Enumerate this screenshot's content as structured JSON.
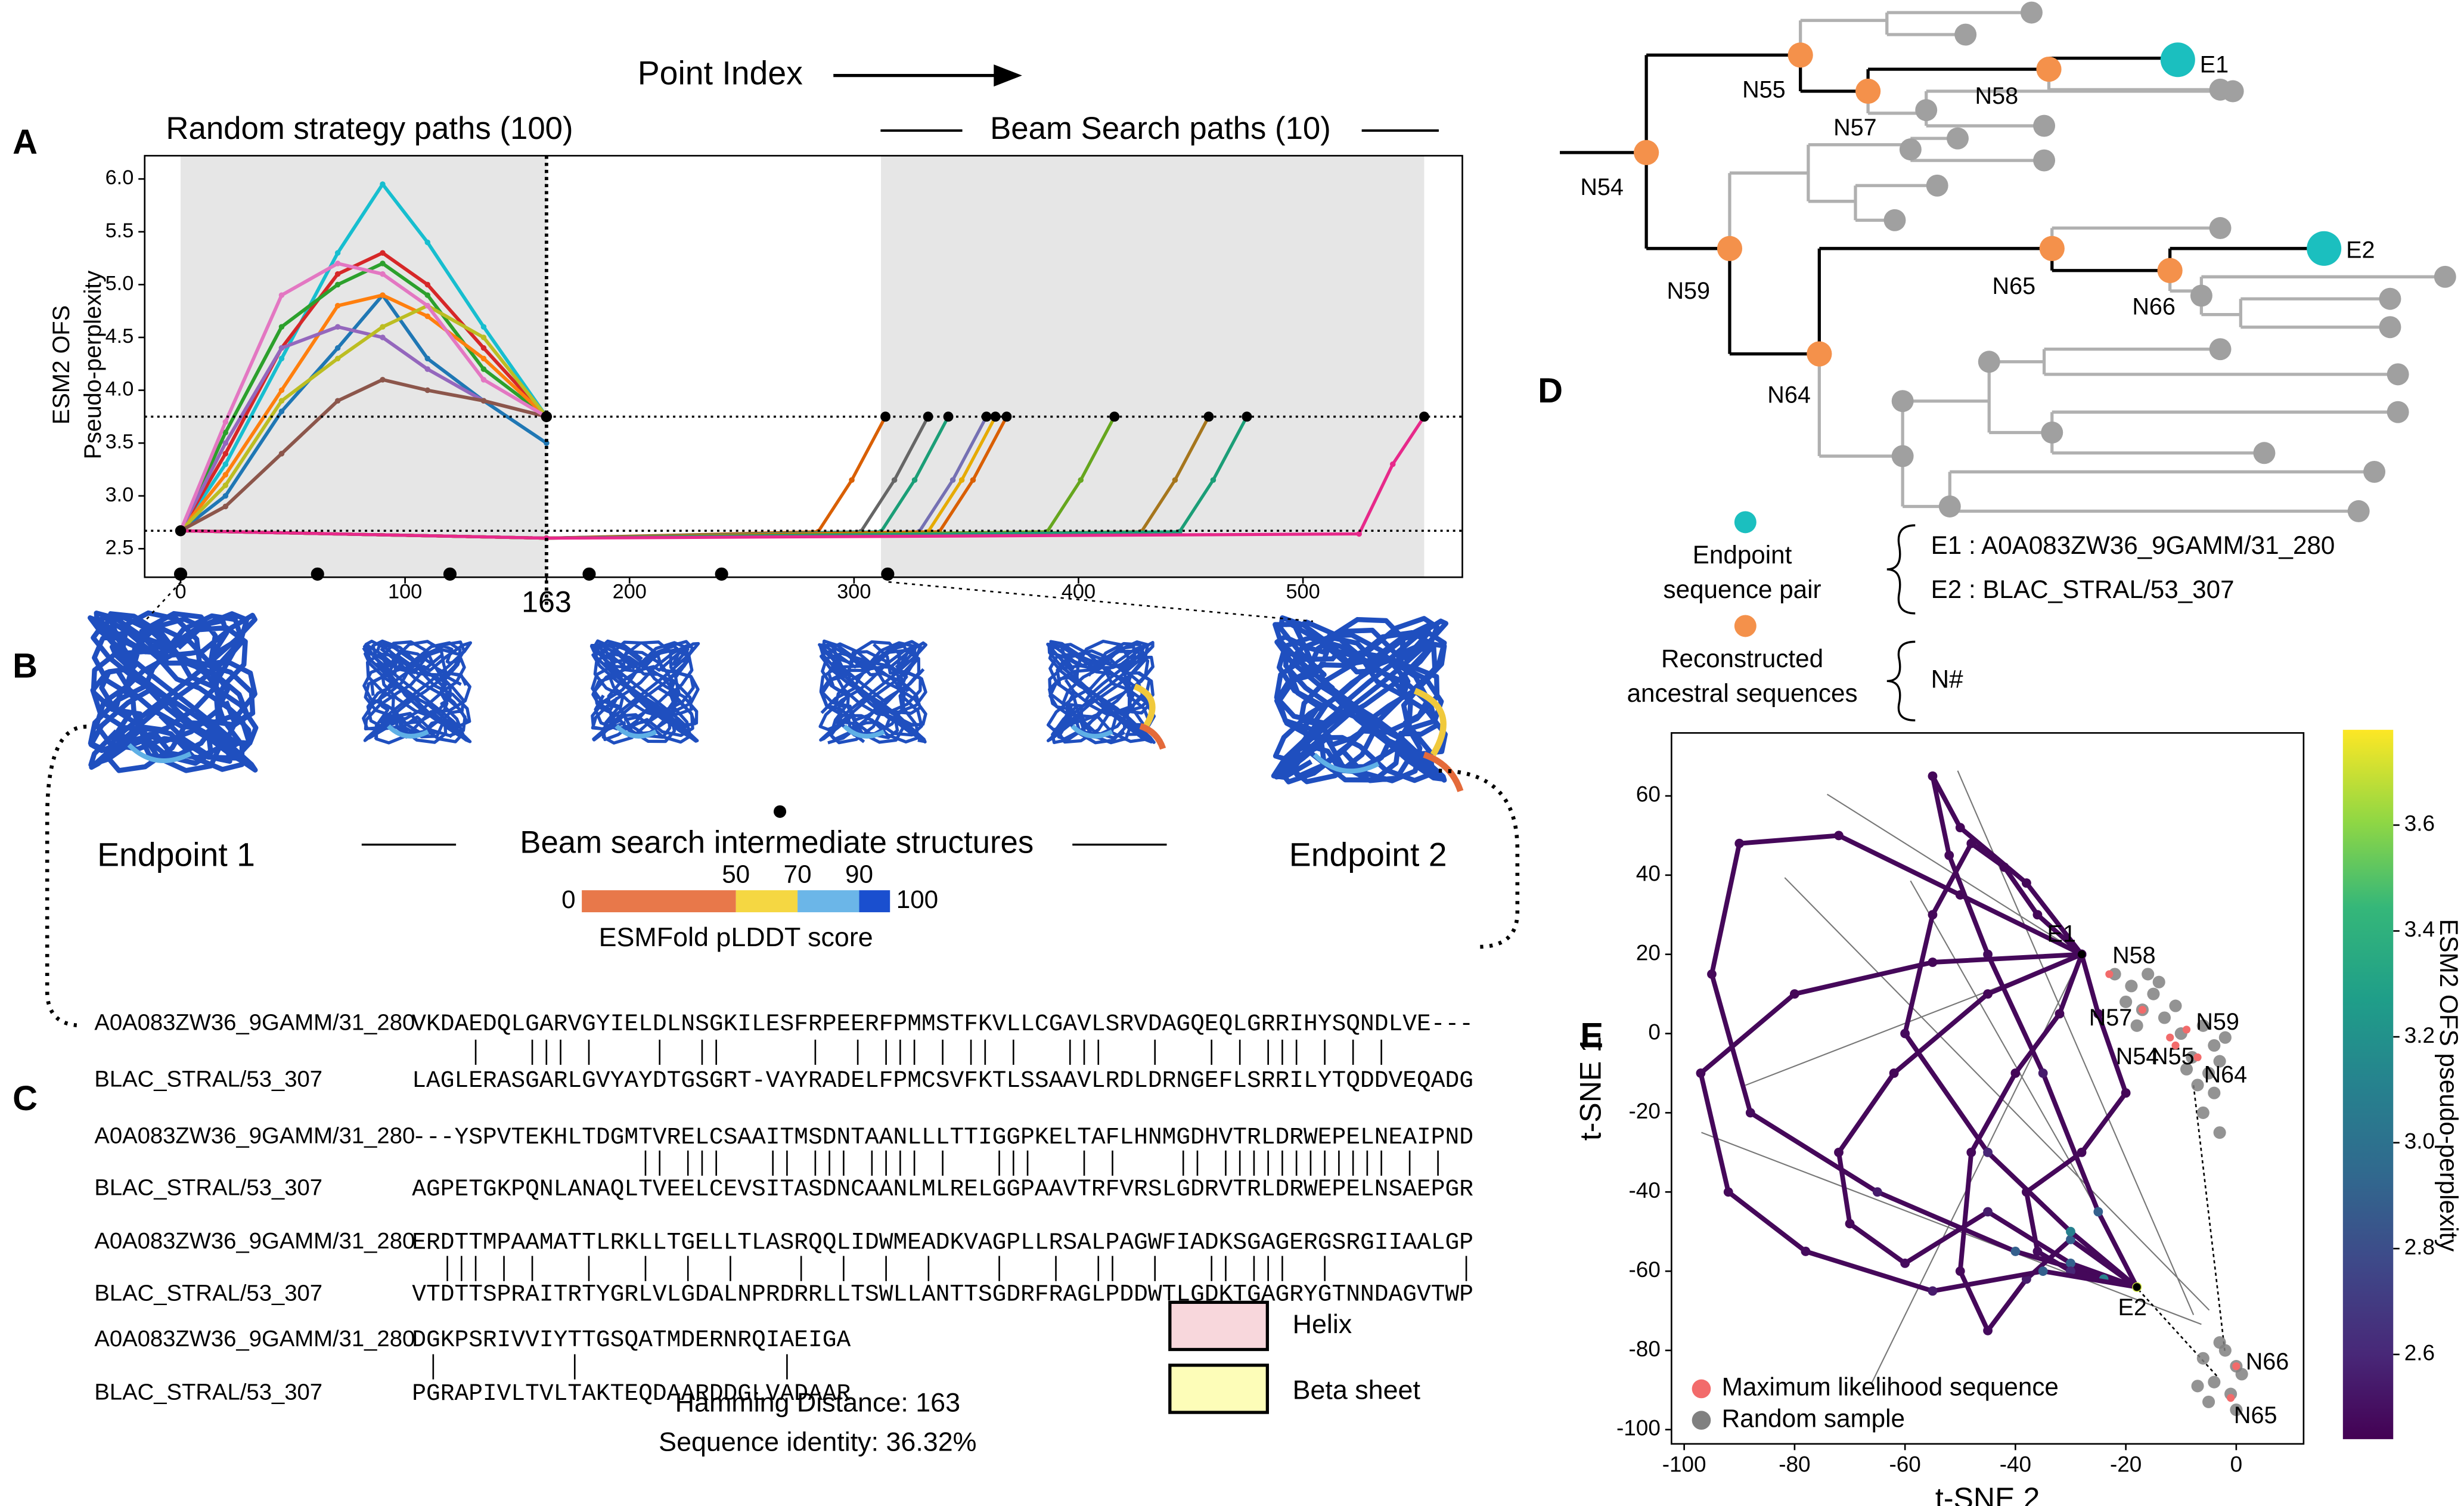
{
  "panel_labels": [
    "A",
    "B",
    "C",
    "D",
    "E"
  ],
  "chart_data": [
    {
      "type": "line",
      "x_title": "Point Index",
      "random_label": "Random strategy paths (100)",
      "beam_label": "Beam Search paths (10)",
      "y_title": [
        "ESM2 OFS",
        "Pseudo-perplexity"
      ],
      "xlim": [
        -16,
        571
      ],
      "ylim": [
        2.23,
        6.22
      ],
      "xticks": [
        0,
        100,
        163,
        200,
        300,
        400,
        500
      ],
      "yticks": [
        2.5,
        {
          "value": 3,
          "label": "3.0"
        },
        3.5,
        {
          "value": 4,
          "label": "4.0"
        },
        4.5,
        {
          "value": 5,
          "label": "5.0"
        },
        5.5,
        {
          "value": 6,
          "label": "6.0"
        }
      ],
      "shaded": [
        [
          0,
          163
        ],
        [
          312,
          554
        ]
      ],
      "hlines": [
        3.75,
        2.67
      ],
      "vline": 163,
      "structure_points": [
        0,
        61,
        120,
        182,
        241,
        315
      ],
      "series": [
        {
          "color": "#17becf",
          "x": [
            0,
            20,
            45,
            70,
            90,
            110,
            135,
            163
          ],
          "values": [
            2.67,
            3.3,
            4.3,
            5.3,
            5.95,
            5.4,
            4.6,
            3.75
          ]
        },
        {
          "color": "#d62728",
          "x": [
            0,
            20,
            45,
            70,
            90,
            110,
            135,
            163
          ],
          "values": [
            2.67,
            3.4,
            4.4,
            5.1,
            5.3,
            5.0,
            4.4,
            3.75
          ]
        },
        {
          "color": "#1f77b4",
          "x": [
            0,
            20,
            45,
            70,
            90,
            110,
            135,
            163
          ],
          "values": [
            2.67,
            3.0,
            3.8,
            4.4,
            4.9,
            4.3,
            3.9,
            3.5
          ]
        },
        {
          "color": "#2ca02c",
          "x": [
            0,
            20,
            45,
            70,
            90,
            110,
            135,
            163
          ],
          "values": [
            2.67,
            3.6,
            4.6,
            5.0,
            5.2,
            4.9,
            4.2,
            3.75
          ]
        },
        {
          "color": "#ff7f0e",
          "x": [
            0,
            20,
            45,
            70,
            90,
            110,
            135,
            163
          ],
          "values": [
            2.67,
            3.2,
            4.0,
            4.8,
            4.9,
            4.7,
            4.3,
            3.75
          ]
        },
        {
          "color": "#9467bd",
          "x": [
            0,
            20,
            45,
            70,
            90,
            110,
            135,
            163
          ],
          "values": [
            2.67,
            3.5,
            4.4,
            4.6,
            4.5,
            4.2,
            3.9,
            3.75
          ]
        },
        {
          "color": "#bcbd22",
          "x": [
            0,
            20,
            45,
            70,
            90,
            110,
            135,
            163
          ],
          "values": [
            2.67,
            3.1,
            3.9,
            4.3,
            4.6,
            4.8,
            4.5,
            3.75
          ]
        },
        {
          "color": "#8c564b",
          "x": [
            0,
            20,
            45,
            70,
            90,
            110,
            135,
            163
          ],
          "values": [
            2.67,
            2.9,
            3.4,
            3.9,
            4.1,
            4.0,
            3.9,
            3.75
          ]
        },
        {
          "color": "#e377c2",
          "x": [
            0,
            20,
            45,
            70,
            90,
            110,
            135,
            163
          ],
          "values": [
            2.67,
            3.7,
            4.9,
            5.2,
            5.1,
            4.8,
            4.1,
            3.75
          ]
        }
      ],
      "beam_series": [
        {
          "color": "#d95f02",
          "x": [
            0,
            163,
            284,
            299,
            314
          ],
          "values": [
            2.67,
            2.6,
            2.66,
            3.15,
            3.75
          ]
        },
        {
          "color": "#666666",
          "x": [
            0,
            163,
            303,
            318,
            333
          ],
          "values": [
            2.67,
            2.6,
            2.66,
            3.15,
            3.75
          ]
        },
        {
          "color": "#1b9e77",
          "x": [
            0,
            163,
            312,
            327,
            342
          ],
          "values": [
            2.67,
            2.6,
            2.66,
            3.15,
            3.75
          ]
        },
        {
          "color": "#7570b3",
          "x": [
            0,
            163,
            329,
            344,
            359
          ],
          "values": [
            2.67,
            2.6,
            2.66,
            3.15,
            3.75
          ]
        },
        {
          "color": "#e6ab02",
          "x": [
            0,
            163,
            333,
            348,
            363
          ],
          "values": [
            2.67,
            2.6,
            2.66,
            3.15,
            3.75
          ]
        },
        {
          "color": "#d95f02",
          "x": [
            0,
            163,
            338,
            353,
            368
          ],
          "values": [
            2.67,
            2.6,
            2.66,
            3.15,
            3.75
          ]
        },
        {
          "color": "#66a61e",
          "x": [
            0,
            163,
            386,
            401,
            416
          ],
          "values": [
            2.67,
            2.6,
            2.66,
            3.15,
            3.75
          ]
        },
        {
          "color": "#a6761d",
          "x": [
            0,
            163,
            428,
            443,
            458
          ],
          "values": [
            2.67,
            2.6,
            2.66,
            3.15,
            3.75
          ]
        },
        {
          "color": "#1b9e77",
          "x": [
            0,
            163,
            445,
            460,
            475
          ],
          "values": [
            2.67,
            2.6,
            2.66,
            3.15,
            3.75
          ]
        },
        {
          "color": "#e7298a",
          "x": [
            0,
            163,
            525,
            540,
            554
          ],
          "values": [
            2.67,
            2.6,
            2.64,
            3.3,
            3.75
          ]
        }
      ]
    },
    {
      "type": "scatter",
      "x_title": "t-SNE 2",
      "y_title": "t-SNE 1",
      "xlim": [
        -102.3,
        12.2
      ],
      "ylim": [
        -103.6,
        75.9
      ],
      "xticks": [
        -100,
        -80,
        -60,
        -40,
        -20,
        0
      ],
      "yticks": [
        60,
        40,
        20,
        0,
        -20,
        -40,
        -60,
        -80,
        -100
      ],
      "colorbar": {
        "label": "ESM2 OFS pseudo-perplexity",
        "lim": [
          2.44,
          3.78
        ],
        "ticks": [
          2.6,
          2.8,
          {
            "value": 3,
            "label": "3.0"
          },
          3.2,
          3.4,
          3.6
        ]
      },
      "trajectories": [
        {
          "x": [
            -28,
            -50,
            -72,
            -90,
            -95,
            -88,
            -65,
            -40,
            -18
          ],
          "y": [
            20,
            35,
            50,
            48,
            15,
            -20,
            -40,
            -55,
            -64
          ],
          "z": [
            2.47,
            2.46,
            2.46,
            2.47,
            2.47,
            2.48,
            2.55,
            2.9,
            3.7
          ]
        },
        {
          "x": [
            -28,
            -45,
            -62,
            -72,
            -70,
            -60,
            -45,
            -30,
            -18
          ],
          "y": [
            20,
            10,
            -10,
            -30,
            -48,
            -58,
            -45,
            -58,
            -64
          ],
          "z": [
            2.47,
            2.46,
            2.46,
            2.47,
            2.47,
            2.48,
            2.55,
            2.9,
            3.7
          ]
        },
        {
          "x": [
            -28,
            -38,
            -50,
            -55,
            -52,
            -45,
            -35,
            -25,
            -18
          ],
          "y": [
            20,
            38,
            52,
            65,
            45,
            20,
            -10,
            -45,
            -64
          ],
          "z": [
            2.47,
            2.46,
            2.46,
            2.47,
            2.47,
            2.48,
            2.55,
            2.9,
            3.7
          ]
        },
        {
          "x": [
            -28,
            -32,
            -40,
            -48,
            -50,
            -45,
            -38,
            -30,
            -18
          ],
          "y": [
            20,
            5,
            -10,
            -30,
            -60,
            -75,
            -62,
            -52,
            -64
          ],
          "z": [
            2.47,
            2.46,
            2.46,
            2.47,
            2.47,
            2.48,
            2.55,
            2.9,
            3.7
          ]
        },
        {
          "x": [
            -28,
            -25,
            -20,
            -28,
            -38,
            -36,
            -30,
            -24,
            -18
          ],
          "y": [
            20,
            5,
            -15,
            -30,
            -40,
            -55,
            -60,
            -62,
            -64
          ],
          "z": [
            2.47,
            2.46,
            2.46,
            2.47,
            2.47,
            2.48,
            2.6,
            3.1,
            3.7
          ]
        },
        {
          "x": [
            -28,
            -55,
            -80,
            -97,
            -92,
            -78,
            -55,
            -35,
            -18
          ],
          "y": [
            20,
            18,
            10,
            -10,
            -40,
            -55,
            -65,
            -60,
            -64
          ],
          "z": [
            2.47,
            2.46,
            2.46,
            2.47,
            2.47,
            2.48,
            2.55,
            2.9,
            3.7
          ]
        },
        {
          "x": [
            -28,
            -36,
            -42,
            -48,
            -55,
            -60,
            -45,
            -30,
            -18
          ],
          "y": [
            20,
            30,
            42,
            48,
            30,
            0,
            -30,
            -50,
            -64
          ],
          "z": [
            2.47,
            2.46,
            2.46,
            2.47,
            2.47,
            2.48,
            2.6,
            3.1,
            3.7
          ]
        }
      ],
      "random_sample": {
        "name": "Random sample",
        "color": "#808080",
        "x": [
          -22,
          -19,
          -15,
          -17,
          -13,
          -20,
          -14,
          -18,
          -11,
          -16,
          -10,
          -6,
          -4,
          -8,
          -3,
          -9,
          -5,
          -2,
          -7,
          -4,
          -6,
          -3,
          -6,
          -2,
          0,
          -4,
          -1,
          -5,
          1,
          -3,
          -7,
          0
        ],
        "y": [
          15,
          12,
          10,
          6,
          4,
          8,
          13,
          2,
          7,
          15,
          0,
          2,
          -3,
          -6,
          -7,
          -9,
          -10,
          -1,
          -13,
          -15,
          -20,
          -25,
          -82,
          -80,
          -84,
          -88,
          -91,
          -93,
          -86,
          -78,
          -89,
          -95
        ]
      },
      "max_likelihood": {
        "name": "Maximum likelihood sequence",
        "color": "#f26b6b",
        "labels": [
          "N58",
          "N57",
          "N55",
          "N59",
          "N54",
          "N64",
          "N66",
          "N65"
        ],
        "x": [
          -23,
          -17,
          -12,
          -9,
          -11,
          -7,
          0,
          -1
        ],
        "y": [
          15,
          6,
          -1,
          1,
          -3,
          -6,
          -84,
          -92
        ]
      },
      "endpoints": {
        "labels": [
          "E1",
          "E2"
        ],
        "x": [
          -28,
          -18
        ],
        "y": [
          20,
          -64
        ]
      }
    }
  ],
  "structures": {
    "endpoint1": "Endpoint 1",
    "endpoint2": "Endpoint 2",
    "intermediate": "Beam search intermediate structures",
    "plddt": {
      "label": "ESMFold pLDDT score",
      "ticks": [
        0,
        50,
        70,
        90,
        100
      ],
      "colors": [
        "#e8784a",
        "#f5d742",
        "#6bb6e8",
        "#1a4fcf"
      ]
    }
  },
  "alignment": {
    "names": [
      "A0A083ZW36_9GAMM/31_280",
      "BLAC_STRAL/53_307"
    ],
    "blocks": [
      [
        "VKDAEDQLGARVGYIELDLNSGKILESFRPEERFPMMSTFKVLLCGAVLSRVDAGQEQLGRRIHYSQNDLVE---",
        "LAGLERASGARLGVYAYDTGSGRT-VAYRADELFPMCSVFKTLSSAAVLRDLDRNGEFLSRRILYTQDDVEQADG"
      ],
      [
        "---YSPVTEKHLTDGMTVRELCSAAITMSDNTAANLLLTTIGGPKELTAFLHNMGDHVTRLDRWEPELNEAIPND",
        "AGPETGKPQNLANAQLTVEELCEVSITASDNCAANLMLRELGGPAAVTRFVRSLGDRVTRLDRWEPELNSAEPGR"
      ],
      [
        "ERDTTMPAAMATTLRKLLTGELLTLASRQQLIDWMEADKVAGPLLRSALPAGWFIADKSGAGERGSRGIIAALGP",
        "VTDTTSPRAITRTYGRLVLGDALNPRDRRLLTSWLLANTTSGDRFRAGLPDDWTLGDKTGAGRYGTNNDAGVTWP"
      ],
      [
        "DGKPSRIVVIYTTGSQATMDERNRQIAEIGA",
        "PGRAPIVLTVLTAKTEQDAARDDGLVADAAR"
      ]
    ],
    "legend": [
      "Helix",
      "Beta sheet"
    ],
    "hamming": "Hamming Distance: 163",
    "identity": "Sequence identity: 36.32%"
  },
  "tree": {
    "nodes": [
      "N54",
      "N55",
      "N57",
      "N58",
      "N59",
      "N64",
      "N65",
      "N66"
    ],
    "endpoints": [
      "E1",
      "E2"
    ],
    "legend": {
      "endpoint": [
        "Endpoint",
        "sequence pair"
      ],
      "ancestral": [
        "Reconstructed",
        "ancestral sequences"
      ],
      "pairs": [
        "E1 : A0A083ZW36_9GAMM/31_280",
        "E2 : BLAC_STRAL/53_307"
      ],
      "node_key": "N#"
    }
  }
}
